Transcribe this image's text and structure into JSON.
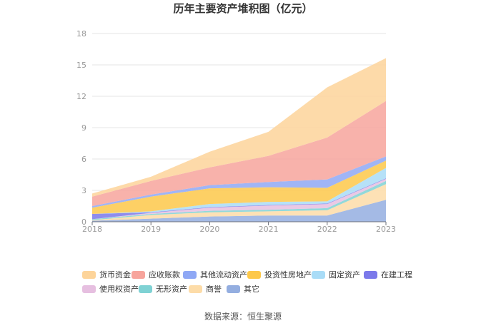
{
  "chart_data": {
    "type": "area",
    "stacked": true,
    "title": "历年主要资产堆积图（亿元）",
    "x": [
      "2018",
      "2019",
      "2020",
      "2021",
      "2022",
      "2023"
    ],
    "ylim": [
      0,
      18
    ],
    "yticks": [
      "0",
      "3",
      "6",
      "9",
      "12",
      "15",
      "18"
    ],
    "grid": true,
    "legend_position": "bottom",
    "series": [
      {
        "name": "货币资金",
        "color": "#fdd49a",
        "values": [
          0.3,
          0.4,
          1.5,
          2.3,
          4.8,
          4.1
        ]
      },
      {
        "name": "应收账款",
        "color": "#f7a49c",
        "values": [
          0.9,
          1.3,
          1.7,
          2.5,
          4.0,
          5.3
        ]
      },
      {
        "name": "其他流动资产",
        "color": "#8fa8f5",
        "values": [
          0.15,
          0.2,
          0.3,
          0.5,
          0.8,
          0.4
        ]
      },
      {
        "name": "投资性房地产",
        "color": "#fdc84a",
        "values": [
          0.6,
          1.4,
          1.5,
          1.4,
          1.3,
          0.7
        ]
      },
      {
        "name": "固定资产",
        "color": "#a9dcf7",
        "values": [
          0.0,
          0.1,
          0.3,
          0.3,
          0.2,
          1.0
        ]
      },
      {
        "name": "在建工程",
        "color": "#7b79ea",
        "values": [
          0.5,
          0.05,
          0.05,
          0.05,
          0.05,
          0.05
        ]
      },
      {
        "name": "使用权资产",
        "color": "#e6bfe0",
        "values": [
          0.0,
          0.1,
          0.3,
          0.4,
          0.4,
          0.2
        ]
      },
      {
        "name": "无形资产",
        "color": "#7fd2d4",
        "values": [
          0.1,
          0.1,
          0.15,
          0.15,
          0.2,
          0.3
        ]
      },
      {
        "name": "商誉",
        "color": "#fddca8",
        "values": [
          0.05,
          0.35,
          0.4,
          0.4,
          0.5,
          1.5
        ]
      },
      {
        "name": "其它",
        "color": "#94aee0",
        "values": [
          0.1,
          0.3,
          0.5,
          0.6,
          0.6,
          2.1
        ]
      }
    ]
  },
  "source": "数据来源：恒生聚源"
}
